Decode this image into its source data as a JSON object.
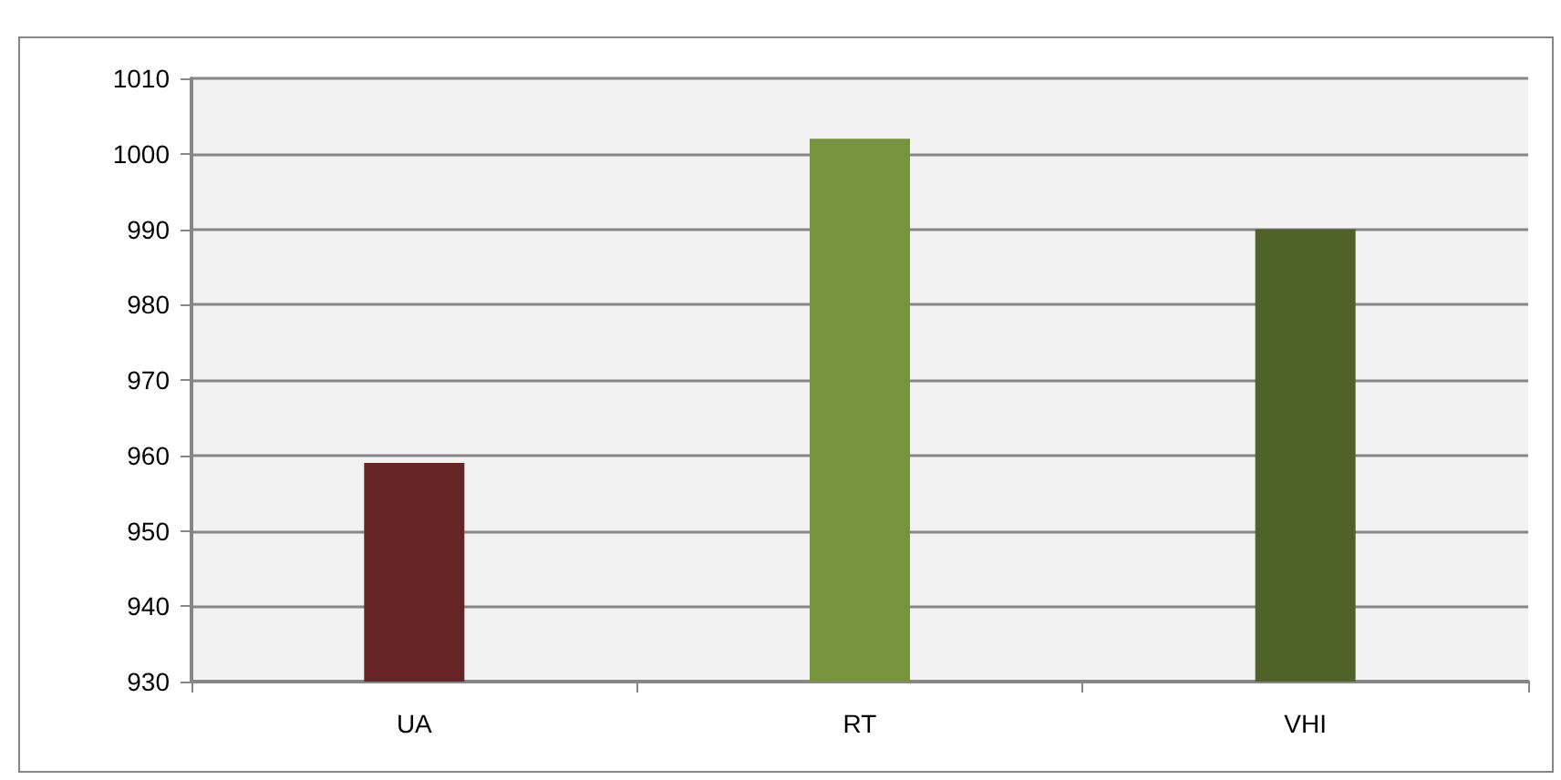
{
  "chart_data": {
    "type": "bar",
    "categories": [
      "UA",
      "RT",
      "VHI"
    ],
    "values": [
      959,
      1002,
      990
    ],
    "colors": [
      "#662425",
      "#77933c",
      "#4f6228"
    ],
    "ylim": [
      930,
      1010
    ],
    "yticks": [
      930,
      940,
      950,
      960,
      970,
      980,
      990,
      1000,
      1010
    ],
    "grid": "y"
  }
}
